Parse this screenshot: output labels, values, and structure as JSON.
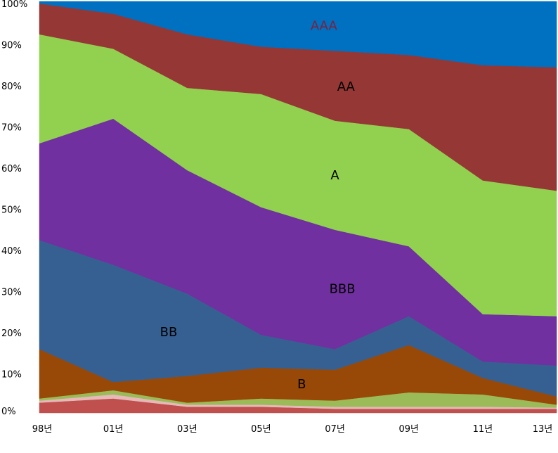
{
  "chart_data": {
    "type": "area",
    "stacked": true,
    "normalized": true,
    "title": "",
    "xlabel": "",
    "ylabel": "",
    "x": [
      "98년",
      "01년",
      "03년",
      "05년",
      "07년",
      "09년",
      "11년",
      "13년"
    ],
    "ylim": [
      0,
      100
    ],
    "yticks": [
      "0%",
      "10%",
      "20%",
      "30%",
      "40%",
      "50%",
      "60%",
      "70%",
      "80%",
      "90%",
      "100%"
    ],
    "grid": false,
    "legend": "none",
    "series": [
      {
        "color": "#C0504D",
        "values": [
          2.5,
          3.5,
          1.5,
          1.5,
          1.0,
          1.0,
          1.0,
          1.0
        ]
      },
      {
        "color": "#E6B9B8",
        "values": [
          0.5,
          1.0,
          0.5,
          0.5,
          0.5,
          0.5,
          0.5,
          0.3
        ]
      },
      {
        "color": "#9BBB59",
        "values": [
          0.5,
          1.0,
          0.5,
          1.5,
          1.5,
          3.5,
          3.0,
          0.7
        ]
      },
      {
        "name": "B",
        "color": "#984807",
        "values": [
          12.0,
          2.0,
          6.5,
          7.5,
          7.5,
          11.5,
          4.0,
          2.0
        ]
      },
      {
        "name": "BB",
        "color": "#376092",
        "values": [
          26.5,
          28.5,
          20.0,
          8.0,
          5.0,
          7.0,
          4.0,
          7.5
        ]
      },
      {
        "name": "BBB",
        "color": "#7030A0",
        "values": [
          23.5,
          35.5,
          30.0,
          31.0,
          29.0,
          17.0,
          11.5,
          12.0
        ]
      },
      {
        "name": "A",
        "color": "#92D050",
        "values": [
          26.5,
          17.0,
          20.0,
          27.5,
          26.5,
          28.5,
          32.5,
          30.5
        ]
      },
      {
        "name": "AA",
        "color": "#953735",
        "values": [
          7.5,
          8.5,
          13.0,
          11.5,
          17.0,
          18.0,
          28.0,
          30.0
        ]
      },
      {
        "name": "AAA",
        "color": "#0070C0",
        "values": [
          0.5,
          3.0,
          8.0,
          11.0,
          12.0,
          13.0,
          15.5,
          16.0
        ]
      }
    ]
  }
}
